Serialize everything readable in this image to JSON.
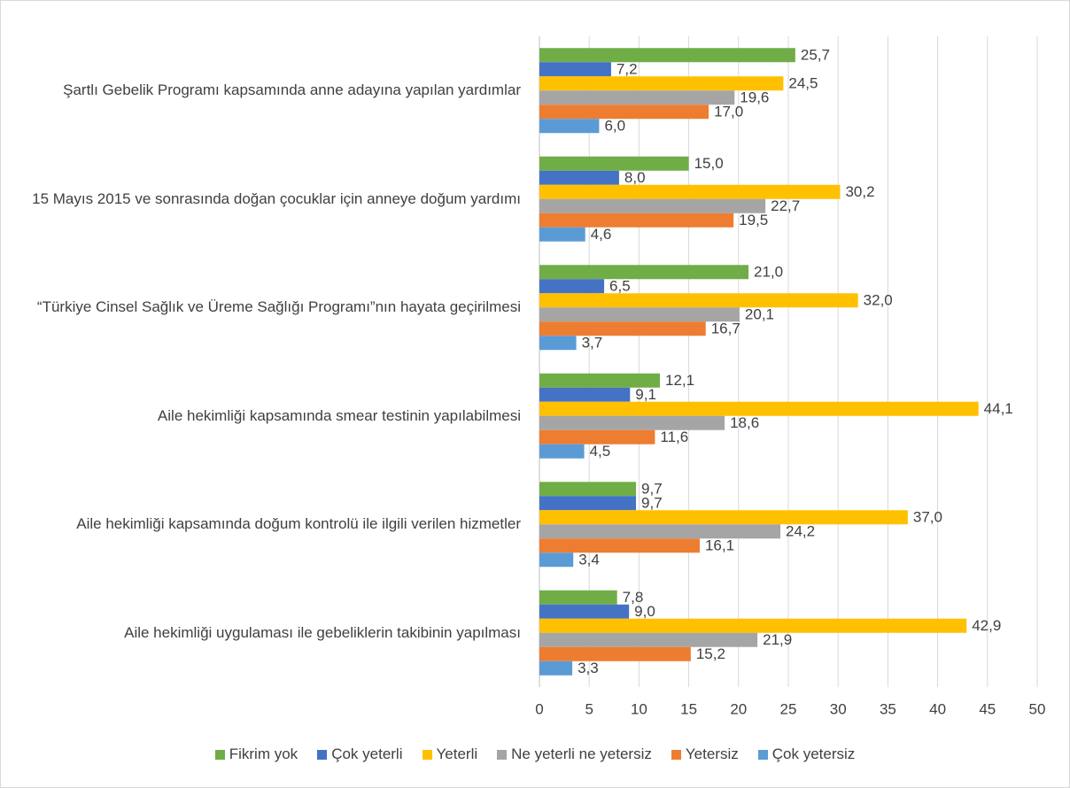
{
  "chart_data": {
    "type": "hbar",
    "categories": [
      "Şartlı Gebelik Programı kapsamında anne adayına yapılan yardımlar",
      "15 Mayıs 2015 ve sonrasında doğan çocuklar için anneye doğum yardımı",
      "“Türkiye Cinsel Sağlık ve Üreme Sağlığı Programı”nın hayata geçirilmesi",
      "Aile hekimliği kapsamında smear testinin yapılabilmesi",
      "Aile hekimliği kapsamında doğum kontrolü ile ilgili verilen hizmetler",
      "Aile hekimliği uygulaması ile gebeliklerin takibinin yapılması"
    ],
    "series": [
      {
        "name": "Fikrim yok",
        "color": "#70ad47",
        "values": [
          25.7,
          15.0,
          21.0,
          12.1,
          9.7,
          7.8
        ],
        "value_labels": [
          "25,7",
          "15,0",
          "21,0",
          "12,1",
          "9,7",
          "7,8"
        ]
      },
      {
        "name": "Çok yeterli",
        "color": "#4472c4",
        "values": [
          7.2,
          8.0,
          6.5,
          9.1,
          9.7,
          9.0
        ],
        "value_labels": [
          "7,2",
          "8,0",
          "6,5",
          "9,1",
          "9,7",
          "9,0"
        ]
      },
      {
        "name": "Yeterli",
        "color": "#ffc000",
        "values": [
          24.5,
          30.2,
          32.0,
          44.1,
          37.0,
          42.9
        ],
        "value_labels": [
          "24,5",
          "30,2",
          "32,0",
          "44,1",
          "37,0",
          "42,9"
        ]
      },
      {
        "name": "Ne yeterli ne yetersiz",
        "color": "#a5a5a5",
        "values": [
          19.6,
          22.7,
          20.1,
          18.6,
          24.2,
          21.9
        ],
        "value_labels": [
          "19,6",
          "22,7",
          "20,1",
          "18,6",
          "24,2",
          "21,9"
        ]
      },
      {
        "name": "Yetersiz",
        "color": "#ed7d31",
        "values": [
          17.0,
          19.5,
          16.7,
          11.6,
          16.1,
          15.2
        ],
        "value_labels": [
          "17,0",
          "19,5",
          "16,7",
          "11,6",
          "16,1",
          "15,2"
        ]
      },
      {
        "name": "Çok yetersiz",
        "color": "#5b9bd5",
        "values": [
          6.0,
          4.6,
          3.7,
          4.5,
          3.4,
          3.3
        ],
        "value_labels": [
          "6,0",
          "4,6",
          "3,7",
          "4,5",
          "3,4",
          "3,3"
        ]
      }
    ],
    "xlim": [
      0,
      50
    ],
    "xticks": [
      0,
      5,
      10,
      15,
      20,
      25,
      30,
      35,
      40,
      45,
      50
    ],
    "grid": true,
    "legend": "bottom"
  }
}
